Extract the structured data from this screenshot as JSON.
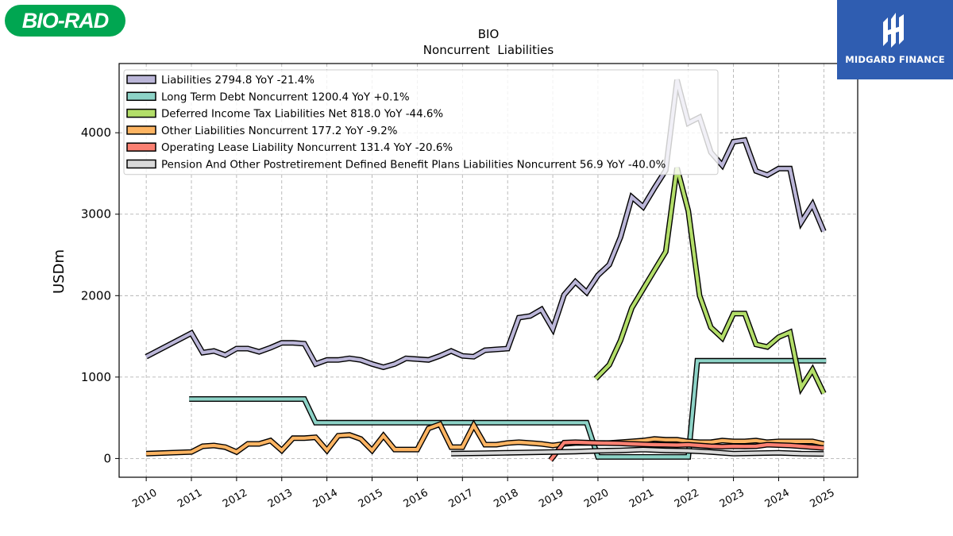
{
  "branding": {
    "company_logo_text": "BIO-RAD",
    "company_logo_color": "#00a651",
    "publisher_logo_text": "MIDGARD FINANCE",
    "publisher_logo_color": "#2f5db1"
  },
  "chart_data": {
    "type": "line",
    "title": "BIO",
    "subtitle": "Noncurrent  Liabilities",
    "ylabel": "USDm",
    "xlabel": "",
    "xlim": [
      2009.4,
      2025.75
    ],
    "ylim": [
      -230,
      4850
    ],
    "yticks": [
      0,
      1000,
      2000,
      3000,
      4000
    ],
    "xticks": [
      "2010",
      "2011",
      "2012",
      "2013",
      "2014",
      "2015",
      "2016",
      "2017",
      "2018",
      "2019",
      "2020",
      "2021",
      "2022",
      "2023",
      "2024",
      "2025"
    ],
    "grid": true,
    "legend_position": "top-left",
    "series": [
      {
        "name": "Liabilities",
        "legend": "Liabilities  2794.8 YoY -21.4%",
        "color": "#bbb6d8",
        "points": [
          [
            2010.0,
            1250
          ],
          [
            2011.0,
            1540
          ],
          [
            2011.25,
            1300
          ],
          [
            2011.5,
            1320
          ],
          [
            2011.75,
            1270
          ],
          [
            2012.0,
            1350
          ],
          [
            2012.25,
            1350
          ],
          [
            2012.5,
            1310
          ],
          [
            2012.75,
            1360
          ],
          [
            2013.0,
            1420
          ],
          [
            2013.25,
            1420
          ],
          [
            2013.5,
            1410
          ],
          [
            2013.75,
            1160
          ],
          [
            2014.0,
            1210
          ],
          [
            2014.25,
            1210
          ],
          [
            2014.5,
            1230
          ],
          [
            2014.75,
            1210
          ],
          [
            2015.0,
            1160
          ],
          [
            2015.25,
            1120
          ],
          [
            2015.5,
            1160
          ],
          [
            2015.75,
            1230
          ],
          [
            2016.0,
            1220
          ],
          [
            2016.25,
            1210
          ],
          [
            2016.5,
            1260
          ],
          [
            2016.75,
            1320
          ],
          [
            2017.0,
            1260
          ],
          [
            2017.25,
            1250
          ],
          [
            2017.5,
            1330
          ],
          [
            2017.75,
            1340
          ],
          [
            2018.0,
            1350
          ],
          [
            2018.25,
            1730
          ],
          [
            2018.5,
            1750
          ],
          [
            2018.75,
            1830
          ],
          [
            2019.0,
            1590
          ],
          [
            2019.25,
            2010
          ],
          [
            2019.5,
            2170
          ],
          [
            2019.75,
            2040
          ],
          [
            2020.0,
            2250
          ],
          [
            2020.25,
            2380
          ],
          [
            2020.5,
            2720
          ],
          [
            2020.75,
            3210
          ],
          [
            2021.0,
            3090
          ],
          [
            2021.25,
            3320
          ],
          [
            2021.5,
            3540
          ],
          [
            2021.75,
            4650
          ],
          [
            2022.0,
            4120
          ],
          [
            2022.25,
            4190
          ],
          [
            2022.5,
            3760
          ],
          [
            2022.75,
            3600
          ],
          [
            2023.0,
            3890
          ],
          [
            2023.25,
            3910
          ],
          [
            2023.5,
            3530
          ],
          [
            2023.75,
            3480
          ],
          [
            2024.0,
            3560
          ],
          [
            2024.25,
            3560
          ],
          [
            2024.5,
            2900
          ],
          [
            2024.75,
            3120
          ],
          [
            2025.0,
            2790
          ]
        ]
      },
      {
        "name": "Long Term Debt Noncurrent",
        "legend": "Long Term Debt Noncurrent  1200.4 YoY +0.1%",
        "color": "#8dd3c7",
        "points": [
          [
            2010.95,
            730
          ],
          [
            2013.5,
            730
          ],
          [
            2013.75,
            440
          ],
          [
            2019.75,
            440
          ],
          [
            2020.0,
            20
          ],
          [
            2022.0,
            20
          ],
          [
            2022.2,
            1200
          ],
          [
            2025.05,
            1200
          ]
        ]
      },
      {
        "name": "Deferred Income Tax Liabilities Net",
        "legend": "Deferred Income Tax Liabilities Net  818.0 YoY -44.6%",
        "color": "#b3de69",
        "points": [
          [
            2019.95,
            980
          ],
          [
            2020.25,
            1150
          ],
          [
            2020.5,
            1450
          ],
          [
            2020.75,
            1850
          ],
          [
            2021.0,
            2080
          ],
          [
            2021.25,
            2310
          ],
          [
            2021.5,
            2540
          ],
          [
            2021.75,
            3570
          ],
          [
            2022.0,
            3040
          ],
          [
            2022.25,
            2000
          ],
          [
            2022.5,
            1610
          ],
          [
            2022.75,
            1480
          ],
          [
            2023.0,
            1780
          ],
          [
            2023.25,
            1780
          ],
          [
            2023.5,
            1400
          ],
          [
            2023.75,
            1370
          ],
          [
            2024.0,
            1490
          ],
          [
            2024.25,
            1550
          ],
          [
            2024.5,
            870
          ],
          [
            2024.75,
            1090
          ],
          [
            2025.0,
            800
          ]
        ]
      },
      {
        "name": "Other Liabilities Noncurrent",
        "legend": "Other Liabilities Noncurrent  177.2 YoY -9.2%",
        "color": "#fdb462",
        "points": [
          [
            2010.0,
            60
          ],
          [
            2011.0,
            80
          ],
          [
            2011.25,
            150
          ],
          [
            2011.5,
            160
          ],
          [
            2011.75,
            140
          ],
          [
            2012.0,
            80
          ],
          [
            2012.25,
            180
          ],
          [
            2012.5,
            180
          ],
          [
            2012.75,
            220
          ],
          [
            2013.0,
            100
          ],
          [
            2013.25,
            250
          ],
          [
            2013.5,
            250
          ],
          [
            2013.75,
            260
          ],
          [
            2014.0,
            100
          ],
          [
            2014.25,
            280
          ],
          [
            2014.5,
            290
          ],
          [
            2014.75,
            240
          ],
          [
            2015.0,
            100
          ],
          [
            2015.25,
            280
          ],
          [
            2015.5,
            110
          ],
          [
            2015.75,
            110
          ],
          [
            2016.0,
            110
          ],
          [
            2016.25,
            370
          ],
          [
            2016.5,
            420
          ],
          [
            2016.75,
            140
          ],
          [
            2017.0,
            140
          ],
          [
            2017.25,
            410
          ],
          [
            2017.5,
            170
          ],
          [
            2017.75,
            170
          ],
          [
            2018.0,
            190
          ],
          [
            2018.25,
            200
          ],
          [
            2018.5,
            190
          ],
          [
            2018.75,
            180
          ],
          [
            2019.0,
            160
          ],
          [
            2019.25,
            180
          ],
          [
            2019.5,
            190
          ],
          [
            2019.75,
            190
          ],
          [
            2020.0,
            190
          ],
          [
            2020.25,
            190
          ],
          [
            2020.5,
            200
          ],
          [
            2020.75,
            210
          ],
          [
            2021.0,
            220
          ],
          [
            2021.25,
            240
          ],
          [
            2021.5,
            230
          ],
          [
            2021.75,
            230
          ],
          [
            2022.0,
            210
          ],
          [
            2022.25,
            200
          ],
          [
            2022.5,
            200
          ],
          [
            2022.75,
            220
          ],
          [
            2023.0,
            210
          ],
          [
            2023.25,
            210
          ],
          [
            2023.5,
            220
          ],
          [
            2023.75,
            200
          ],
          [
            2024.0,
            210
          ],
          [
            2024.25,
            210
          ],
          [
            2024.5,
            210
          ],
          [
            2024.75,
            210
          ],
          [
            2025.0,
            180
          ]
        ]
      },
      {
        "name": "Operating Lease Liability Noncurrent",
        "legend": "Operating Lease Liability Noncurrent  131.4 YoY -20.6%",
        "color": "#fb8072",
        "points": [
          [
            2018.95,
            -20
          ],
          [
            2019.25,
            195
          ],
          [
            2019.5,
            200
          ],
          [
            2019.75,
            195
          ],
          [
            2020.0,
            190
          ],
          [
            2020.25,
            188
          ],
          [
            2020.5,
            185
          ],
          [
            2020.75,
            180
          ],
          [
            2021.0,
            175
          ],
          [
            2021.25,
            170
          ],
          [
            2021.5,
            168
          ],
          [
            2021.75,
            165
          ],
          [
            2022.0,
            170
          ],
          [
            2022.25,
            160
          ],
          [
            2022.5,
            150
          ],
          [
            2022.75,
            145
          ],
          [
            2023.0,
            150
          ],
          [
            2023.25,
            148
          ],
          [
            2023.5,
            150
          ],
          [
            2023.75,
            170
          ],
          [
            2024.0,
            165
          ],
          [
            2024.25,
            160
          ],
          [
            2024.5,
            150
          ],
          [
            2024.75,
            140
          ],
          [
            2025.0,
            130
          ]
        ]
      },
      {
        "name": "Pension And Other Postretirement Defined Benefit Plans Liabilities Noncurrent",
        "legend": "Pension And Other Postretirement Defined Benefit Plans Liabilities Noncurrent  56.9 YoY -40.0%",
        "color": "#d9d9d9",
        "points": [
          [
            2016.75,
            60
          ],
          [
            2017.5,
            65
          ],
          [
            2018.0,
            70
          ],
          [
            2018.5,
            75
          ],
          [
            2019.0,
            80
          ],
          [
            2019.5,
            85
          ],
          [
            2020.0,
            95
          ],
          [
            2020.5,
            100
          ],
          [
            2021.0,
            110
          ],
          [
            2021.5,
            100
          ],
          [
            2022.0,
            95
          ],
          [
            2022.5,
            80
          ],
          [
            2023.0,
            60
          ],
          [
            2023.5,
            65
          ],
          [
            2024.0,
            70
          ],
          [
            2024.5,
            60
          ],
          [
            2025.0,
            57
          ]
        ]
      }
    ]
  }
}
